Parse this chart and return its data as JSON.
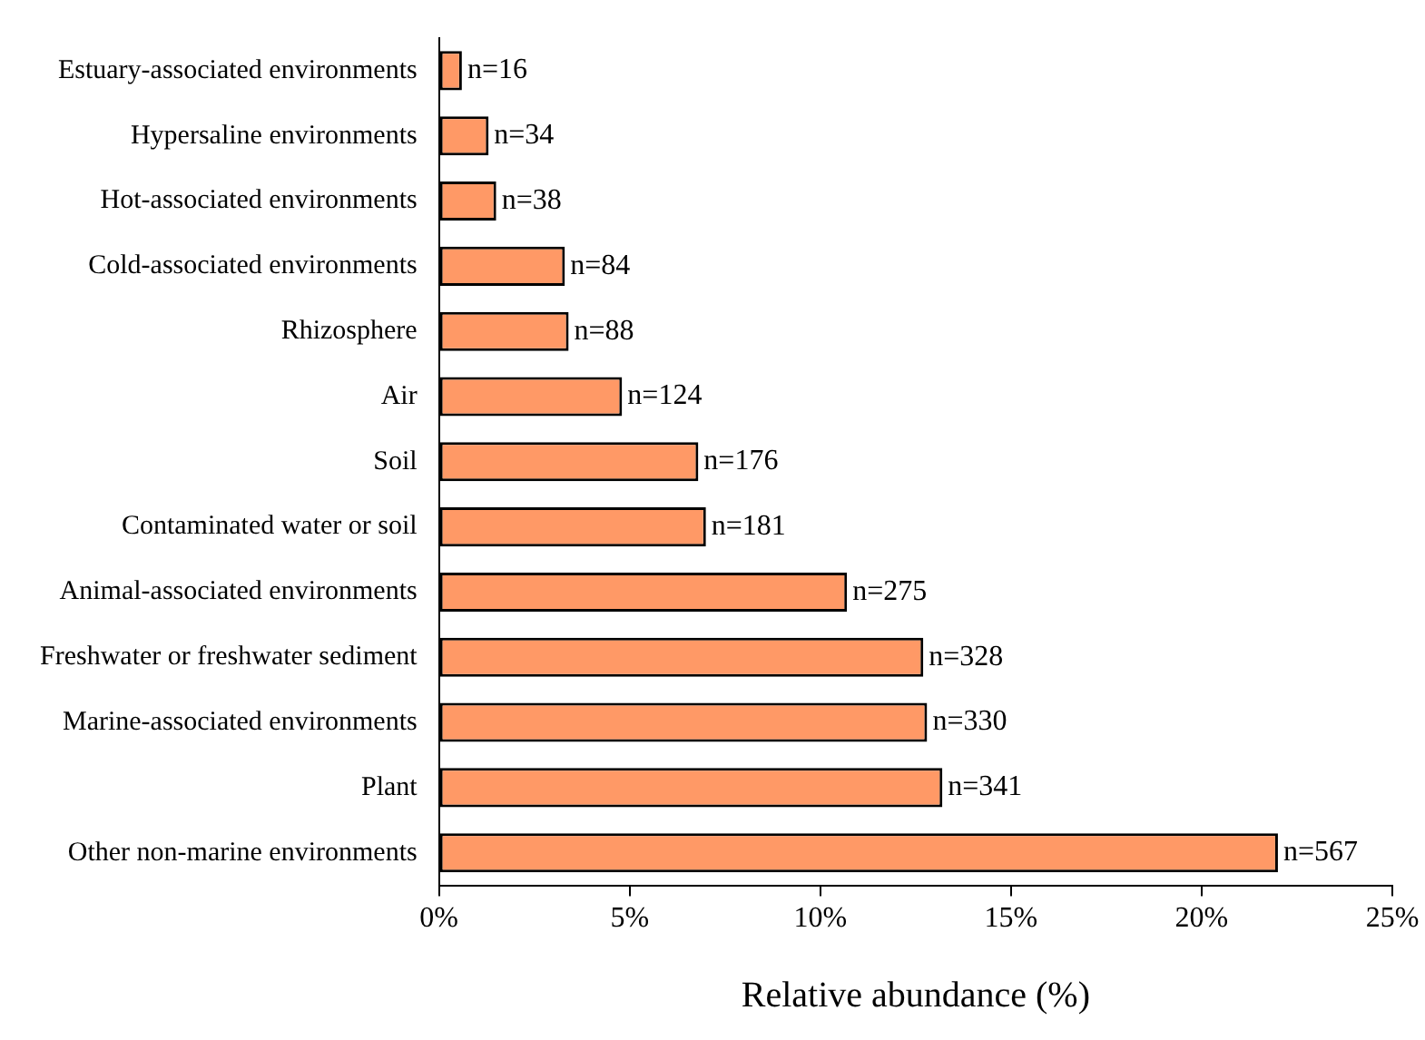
{
  "chart_data": {
    "type": "bar",
    "orientation": "horizontal",
    "xlabel": "Relative abundance (%)",
    "categories": [
      "Estuary-associated environments",
      "Hypersaline environments",
      "Hot-associated environments",
      "Cold-associated environments",
      "Rhizosphere",
      "Air",
      "Soil",
      "Contaminated water or soil",
      "Animal-associated environments",
      "Freshwater or freshwater sediment",
      "Marine-associated environments",
      "Plant",
      "Other non-marine environments"
    ],
    "values": [
      0.6,
      1.3,
      1.5,
      3.3,
      3.4,
      4.8,
      6.8,
      7.0,
      10.7,
      12.7,
      12.8,
      13.2,
      22.0
    ],
    "annotations": [
      {
        "text": "n=16",
        "x": 0.6,
        "y": "Estuary-associated environments"
      },
      {
        "text": "n=34",
        "x": 1.3,
        "y": "Hypersaline environments"
      },
      {
        "text": "n=38",
        "x": 1.5,
        "y": "Hot-associated environments"
      },
      {
        "text": "n=84",
        "x": 3.3,
        "y": "Cold-associated environments"
      },
      {
        "text": "n=88",
        "x": 3.4,
        "y": "Rhizosphere"
      },
      {
        "text": "n=124",
        "x": 4.8,
        "y": "Air"
      },
      {
        "text": "n=176",
        "x": 6.8,
        "y": "Soil"
      },
      {
        "text": "n=181",
        "x": 7.0,
        "y": "Contaminated water or soil"
      },
      {
        "text": "n=275",
        "x": 10.7,
        "y": "Animal-associated environments"
      },
      {
        "text": "n=328",
        "x": 12.7,
        "y": "Freshwater or freshwater sediment"
      },
      {
        "text": "n=330",
        "x": 12.8,
        "y": "Marine-associated environments"
      },
      {
        "text": "n=341",
        "x": 13.2,
        "y": "Plant"
      },
      {
        "text": "n=567",
        "x": 22.0,
        "y": "Other non-marine environments"
      }
    ],
    "color": "#ff9966",
    "xlim": [
      0,
      25
    ],
    "xticks": [
      {
        "value": 0,
        "label": "0%"
      },
      {
        "value": 5,
        "label": "5%"
      },
      {
        "value": 10,
        "label": "10%"
      },
      {
        "value": 15,
        "label": "15%"
      },
      {
        "value": 20,
        "label": "20%"
      },
      {
        "value": 25,
        "label": "25%"
      }
    ],
    "grid": false,
    "legend": false
  }
}
